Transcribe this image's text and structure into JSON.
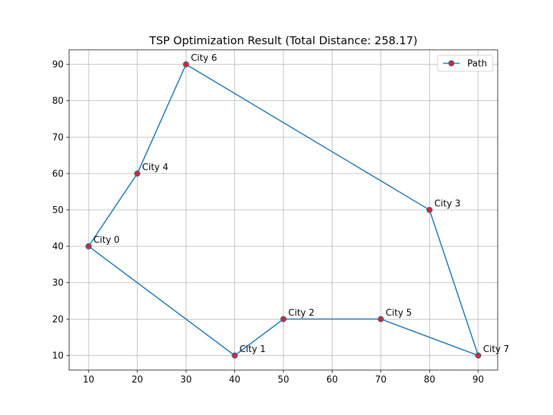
{
  "chart_data": {
    "type": "line",
    "title": "TSP Optimization Result (Total Distance: 258.17)",
    "xlabel": "",
    "ylabel": "",
    "xlim": [
      6,
      94
    ],
    "ylim": [
      6,
      94
    ],
    "xticks": [
      10,
      20,
      30,
      40,
      50,
      60,
      70,
      80,
      90
    ],
    "yticks": [
      10,
      20,
      30,
      40,
      50,
      60,
      70,
      80,
      90
    ],
    "grid": true,
    "legend": "top-right",
    "series": [
      {
        "name": "Path",
        "line_color": "#1f77b4",
        "marker_color": "#d62728",
        "marker_edge_color": "#1f77b4",
        "points": [
          {
            "label": "City 0",
            "x": 10,
            "y": 40
          },
          {
            "label": "City 4",
            "x": 20,
            "y": 60
          },
          {
            "label": "City 6",
            "x": 30,
            "y": 90
          },
          {
            "label": "City 3",
            "x": 80,
            "y": 50
          },
          {
            "label": "City 7",
            "x": 90,
            "y": 10
          },
          {
            "label": "City 5",
            "x": 70,
            "y": 20
          },
          {
            "label": "City 2",
            "x": 50,
            "y": 20
          },
          {
            "label": "City 1",
            "x": 40,
            "y": 10
          },
          {
            "label": "City 0",
            "x": 10,
            "y": 40
          }
        ]
      }
    ]
  }
}
